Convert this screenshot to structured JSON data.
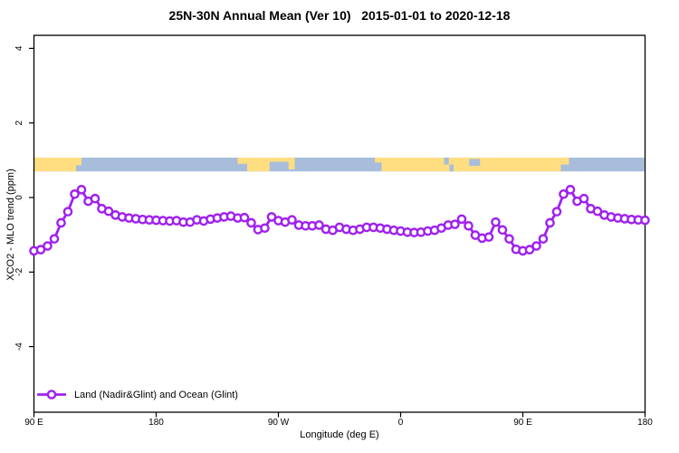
{
  "colors": {
    "line": "#A020F0",
    "marker_fill": "#FFFFFF",
    "ocean": "#A7BDDB",
    "land": "#FFDE82",
    "axis": "#000000"
  },
  "legend": {
    "label": "Land (Nadir&Glint) and Ocean (Glint)"
  },
  "chart_data": {
    "type": "line",
    "title": "25N-30N Annual Mean (Ver 10)   2015-01-01 to 2020-12-18",
    "xlabel": "Longitude (deg E)",
    "ylabel": "XCO2 - MLO trend (ppm)",
    "marker": "open-circle",
    "legend_position": "bottom-left-inside",
    "grid": false,
    "xlim": [
      90,
      540
    ],
    "ylim": [
      -5.8,
      4.35
    ],
    "xticks": {
      "pos": [
        90,
        180,
        270,
        360,
        450,
        540
      ],
      "labels": [
        "90 E",
        "180",
        "90 W",
        "0",
        "90 E",
        "180"
      ]
    },
    "yticks": {
      "pos": [
        4,
        2,
        0,
        -2,
        -4
      ],
      "labels": [
        "4",
        "2",
        "0",
        "-2",
        "-4"
      ]
    },
    "series": [
      {
        "name": "Land (Nadir&Glint) and Ocean (Glint)",
        "x": [
          90,
          95,
          100,
          105,
          110,
          115,
          120,
          125,
          130,
          135,
          140,
          145,
          150,
          155,
          160,
          165,
          170,
          175,
          180,
          185,
          190,
          195,
          200,
          205,
          210,
          215,
          220,
          225,
          230,
          235,
          240,
          245,
          250,
          255,
          260,
          265,
          270,
          275,
          280,
          285,
          290,
          295,
          300,
          305,
          310,
          315,
          320,
          325,
          330,
          335,
          340,
          345,
          350,
          355,
          360,
          365,
          370,
          375,
          380,
          385,
          390,
          395,
          400,
          405,
          410,
          415,
          420,
          425,
          430,
          435,
          440,
          445,
          450,
          455,
          460,
          465,
          470,
          475,
          480,
          485,
          490,
          495,
          500,
          505,
          510,
          515,
          520,
          525,
          530,
          535,
          540
        ],
        "y": [
          -1.43,
          -1.4,
          -1.3,
          -1.11,
          -0.68,
          -0.38,
          0.09,
          0.21,
          -0.1,
          -0.03,
          -0.3,
          -0.37,
          -0.47,
          -0.52,
          -0.55,
          -0.57,
          -0.59,
          -0.6,
          -0.61,
          -0.62,
          -0.63,
          -0.62,
          -0.66,
          -0.66,
          -0.6,
          -0.63,
          -0.58,
          -0.55,
          -0.52,
          -0.5,
          -0.55,
          -0.54,
          -0.68,
          -0.86,
          -0.82,
          -0.52,
          -0.62,
          -0.66,
          -0.6,
          -0.74,
          -0.76,
          -0.76,
          -0.74,
          -0.85,
          -0.88,
          -0.8,
          -0.85,
          -0.88,
          -0.85,
          -0.8,
          -0.8,
          -0.82,
          -0.85,
          -0.88,
          -0.9,
          -0.93,
          -0.94,
          -0.93,
          -0.9,
          -0.88,
          -0.82,
          -0.74,
          -0.72,
          -0.58,
          -0.76,
          -1.01,
          -1.09,
          -1.06,
          -0.66,
          -0.87,
          -1.11,
          -1.39,
          -1.43,
          -1.4,
          -1.3,
          -1.11,
          -0.68,
          -0.38,
          0.09,
          0.21,
          -0.1,
          -0.03,
          -0.3,
          -0.37,
          -0.47,
          -0.52,
          -0.55,
          -0.57,
          -0.59,
          -0.6,
          -0.61
        ]
      }
    ],
    "map_strip": {
      "description": "land/ocean band drawn across plot near y=+0.9",
      "y_top": 1.07,
      "y_bottom": 0.7,
      "land_segments": [
        {
          "from": 90.3,
          "to": 121,
          "t": 0,
          "b": 1
        },
        {
          "from": 121,
          "to": 125,
          "t": 0,
          "b": 0.55
        },
        {
          "from": 240,
          "to": 247,
          "t": 0,
          "b": 0.45
        },
        {
          "from": 247,
          "to": 263.5,
          "t": 0,
          "b": 1
        },
        {
          "from": 263.5,
          "to": 279.5,
          "t": 0,
          "b": 0.3
        },
        {
          "from": 277.5,
          "to": 282,
          "t": 0,
          "b": 0.85
        },
        {
          "from": 341,
          "to": 346,
          "t": 0,
          "b": 0.35
        },
        {
          "from": 346,
          "to": 478,
          "t": 0,
          "b": 1
        },
        {
          "from": 478,
          "to": 484,
          "t": 0,
          "b": 0.5
        }
      ],
      "water_notches": [
        {
          "from": 392,
          "to": 395.5,
          "t": 0,
          "b": 0.5
        },
        {
          "from": 396,
          "to": 399,
          "t": 0.5,
          "b": 1
        },
        {
          "from": 410.5,
          "to": 418.5,
          "t": 0.1,
          "b": 0.6
        }
      ]
    }
  }
}
